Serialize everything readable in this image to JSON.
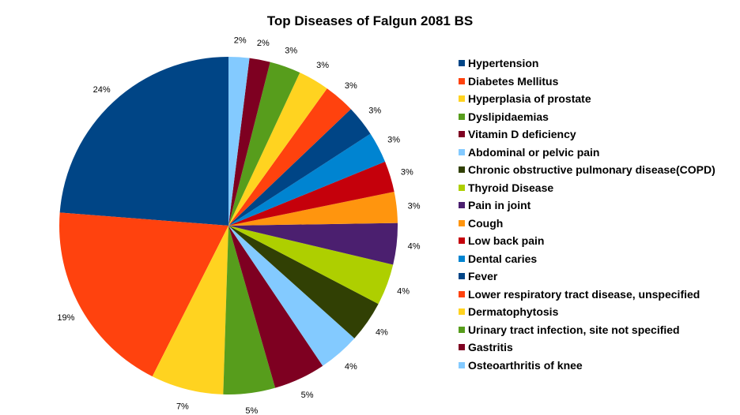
{
  "chart_data": {
    "type": "pie",
    "title": "Top Diseases of Falgun 2081 BS",
    "legend_position": "right",
    "slices": [
      {
        "label": "Hypertension",
        "value": 24,
        "display": "24%",
        "color": "#004586"
      },
      {
        "label": "Diabetes Mellitus",
        "value": 19,
        "display": "19%",
        "color": "#ff420e"
      },
      {
        "label": "Hyperplasia of prostate",
        "value": 7,
        "display": "7%",
        "color": "#ffd320"
      },
      {
        "label": "Dyslipidaemias",
        "value": 5,
        "display": "5%",
        "color": "#579d1c"
      },
      {
        "label": "Vitamin D deficiency",
        "value": 5,
        "display": "5%",
        "color": "#7e0021"
      },
      {
        "label": "Abdominal or pelvic pain",
        "value": 4,
        "display": "4%",
        "color": "#83caff"
      },
      {
        "label": "Chronic obstructive pulmonary disease(COPD)",
        "value": 4,
        "display": "4%",
        "color": "#314004"
      },
      {
        "label": "Thyroid Disease",
        "value": 4,
        "display": "4%",
        "color": "#aecf00"
      },
      {
        "label": "Pain in joint",
        "value": 4,
        "display": "4%",
        "color": "#4b1f6f"
      },
      {
        "label": "Cough",
        "value": 3,
        "display": "3%",
        "color": "#ff950e"
      },
      {
        "label": "Low back pain",
        "value": 3,
        "display": "3%",
        "color": "#c5000b"
      },
      {
        "label": "Dental caries",
        "value": 3,
        "display": "3%",
        "color": "#0084d1"
      },
      {
        "label": "Fever",
        "value": 3,
        "display": "3%",
        "color": "#004586"
      },
      {
        "label": "Lower respiratory tract disease, unspecified",
        "value": 3,
        "display": "3%",
        "color": "#ff420e"
      },
      {
        "label": "Dermatophytosis",
        "value": 3,
        "display": "3%",
        "color": "#ffd320"
      },
      {
        "label": "Urinary tract infection, site not specified",
        "value": 3,
        "display": "3%",
        "color": "#579d1c"
      },
      {
        "label": "Gastritis",
        "value": 2,
        "display": "2%",
        "color": "#7e0021"
      },
      {
        "label": "Osteoarthritis of knee",
        "value": 2,
        "display": "2%",
        "color": "#83caff"
      }
    ]
  }
}
